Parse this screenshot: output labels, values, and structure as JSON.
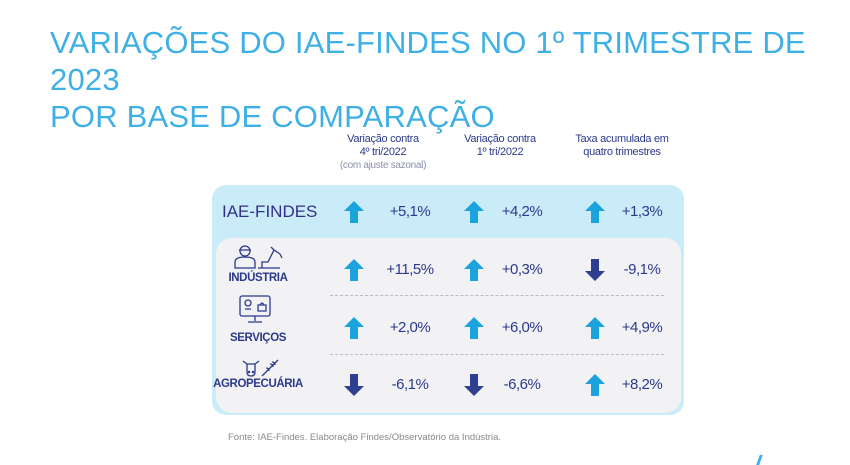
{
  "title": [
    "VARIAÇÕES DO IAE-FINDES NO 1º TRIMESTRE DE 2023",
    "POR BASE DE COMPARAÇÃO"
  ],
  "colors": {
    "up": "#1aa3dc",
    "down": "#2e3f8f",
    "title": "#3eb0e6",
    "text": "#2b3a8c"
  },
  "chart_data": {
    "type": "table",
    "title": "VARIAÇÕES DO IAE-FINDES NO 1º TRIMESTRE DE 2023 POR BASE DE COMPARAÇÃO",
    "columns": [
      {
        "line1": "Variação contra",
        "line2": "4º tri/2022",
        "note": "(com ajuste sazonal)"
      },
      {
        "line1": "Variação contra",
        "line2": "1º tri/2022",
        "note": ""
      },
      {
        "line1": "Taxa acumulada em",
        "line2": "quatro trimestres",
        "note": ""
      }
    ],
    "rows": [
      {
        "label": "IAE-FINDES",
        "icon": "",
        "values": [
          5.1,
          4.2,
          1.3
        ],
        "labels": [
          "+5,1%",
          "+4,2%",
          "+1,3%"
        ]
      },
      {
        "label": "INDÚSTRIA",
        "icon": "worker-robot-arm-icon",
        "values": [
          11.5,
          0.3,
          -9.1
        ],
        "labels": [
          "+11,5%",
          "+0,3%",
          "-9,1%"
        ]
      },
      {
        "label": "SERVIÇOS",
        "icon": "monitor-shopping-icon",
        "values": [
          2.0,
          6.0,
          4.9
        ],
        "labels": [
          "+2,0%",
          "+6,0%",
          "+4,9%"
        ]
      },
      {
        "label": "AGROPECUÁRIA",
        "icon": "cow-wheat-icon",
        "values": [
          -6.1,
          -6.6,
          8.2
        ],
        "labels": [
          "-6,1%",
          "-6,6%",
          "+8,2%"
        ]
      }
    ]
  },
  "footer": "Fonte: IAE-Findes. Elaboração Findes/Observatório da Indústria."
}
